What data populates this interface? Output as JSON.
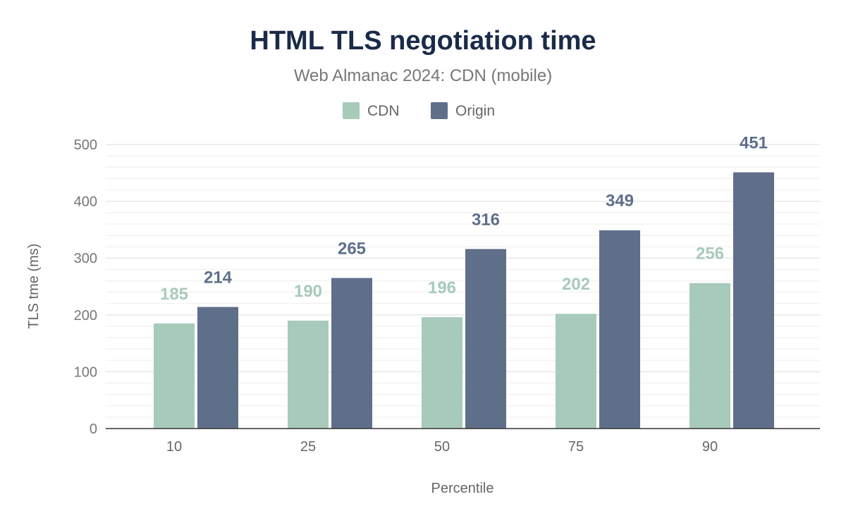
{
  "chart_data": {
    "type": "bar",
    "title": "HTML TLS negotiation time",
    "subtitle": "Web Almanac 2024: CDN (mobile)",
    "xlabel": "Percentile",
    "ylabel": "TLS tme (ms)",
    "categories": [
      "10",
      "25",
      "50",
      "75",
      "90"
    ],
    "series": [
      {
        "name": "CDN",
        "values": [
          185,
          190,
          196,
          202,
          256
        ],
        "color": "#a8cabb"
      },
      {
        "name": "Origin",
        "values": [
          214,
          265,
          316,
          349,
          451
        ],
        "color": "#5f6f8a"
      }
    ],
    "ylim": [
      0,
      500
    ],
    "yticks": [
      0,
      100,
      200,
      300,
      400,
      500
    ],
    "grid": true,
    "legend": "top-center",
    "title_color": "#1a2b49"
  }
}
